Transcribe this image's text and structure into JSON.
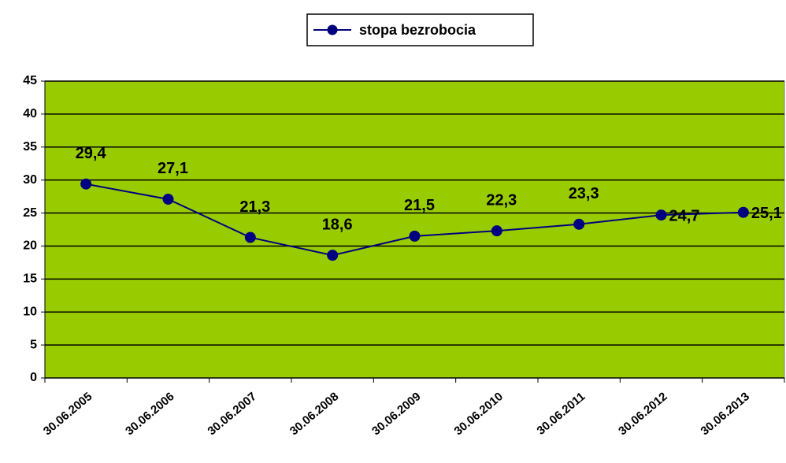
{
  "chart_data": {
    "type": "line",
    "categories": [
      "30.06.2005",
      "30.06.2006",
      "30.06.2007",
      "30.06.2008",
      "30.06.2009",
      "30.06.2010",
      "30.06.2011",
      "30.06.2012",
      "30.06.2013"
    ],
    "series": [
      {
        "name": "stopa bezrobocia",
        "color": "#000080",
        "values": [
          29.4,
          27.1,
          21.3,
          18.6,
          21.5,
          22.3,
          23.3,
          24.7,
          25.1
        ],
        "value_labels": [
          "29,4",
          "27,1",
          "21,3",
          "18,6",
          "21,5",
          "22,3",
          "23,3",
          "24,7",
          "25,1"
        ]
      }
    ],
    "ylim": [
      0,
      45
    ],
    "yticks": [
      0,
      5,
      10,
      15,
      20,
      25,
      30,
      35,
      40,
      45
    ],
    "grid": true,
    "plot_color": "#99cc00",
    "legend": "top"
  }
}
